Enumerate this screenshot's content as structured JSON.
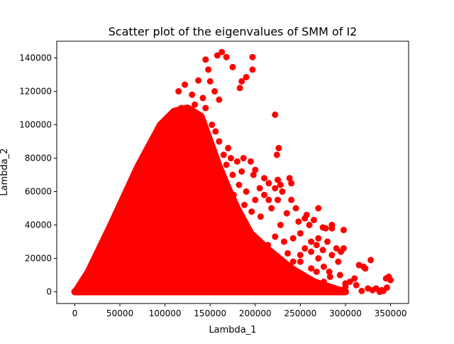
{
  "chart_data": {
    "type": "scatter",
    "title": "Scatter plot of the eigenvalues of SMM of I2",
    "xlabel": "Lambda_1",
    "ylabel": "Lambda_2",
    "xlim": [
      -20000,
      370000
    ],
    "ylim": [
      -7000,
      150000
    ],
    "x_ticks": [
      0,
      50000,
      100000,
      150000,
      200000,
      250000,
      300000,
      350000
    ],
    "x_tick_labels": [
      "0",
      "50000",
      "100000",
      "150000",
      "200000",
      "250000",
      "300000",
      "350000"
    ],
    "y_ticks": [
      0,
      20000,
      40000,
      60000,
      80000,
      100000,
      120000,
      140000
    ],
    "y_tick_labels": [
      "0",
      "20000",
      "40000",
      "60000",
      "80000",
      "100000",
      "120000",
      "140000"
    ],
    "grid": false,
    "marker_color": "#ff0000",
    "dense_region": [
      [
        0,
        0
      ],
      [
        2000,
        1000
      ],
      [
        15000,
        12000
      ],
      [
        40000,
        40000
      ],
      [
        70000,
        75000
      ],
      [
        95000,
        100000
      ],
      [
        110000,
        108000
      ],
      [
        125000,
        110000
      ],
      [
        140000,
        105000
      ],
      [
        150000,
        90000
      ],
      [
        160000,
        75000
      ],
      [
        170000,
        62000
      ],
      [
        180000,
        50000
      ],
      [
        195000,
        35000
      ],
      [
        215000,
        25000
      ],
      [
        240000,
        14000
      ],
      [
        265000,
        6000
      ],
      [
        290000,
        1500
      ],
      [
        300000,
        0
      ]
    ],
    "points": [
      [
        163000,
        143500
      ],
      [
        168000,
        140500
      ],
      [
        158000,
        141500
      ],
      [
        197000,
        140500
      ],
      [
        145000,
        139000
      ],
      [
        175000,
        134500
      ],
      [
        148000,
        133000
      ],
      [
        197000,
        133000
      ],
      [
        190000,
        128500
      ],
      [
        137000,
        126500
      ],
      [
        150000,
        126000
      ],
      [
        185000,
        126000
      ],
      [
        183000,
        122000
      ],
      [
        122000,
        124000
      ],
      [
        115000,
        120000
      ],
      [
        130000,
        118000
      ],
      [
        142000,
        116000
      ],
      [
        155000,
        120000
      ],
      [
        160000,
        115000
      ],
      [
        133000,
        112000
      ],
      [
        118000,
        110000
      ],
      [
        145000,
        110000
      ],
      [
        222000,
        106000
      ],
      [
        128000,
        106000
      ],
      [
        140000,
        104000
      ],
      [
        152000,
        100000
      ],
      [
        145000,
        95000
      ],
      [
        156000,
        96000
      ],
      [
        160000,
        90000
      ],
      [
        170000,
        86000
      ],
      [
        226000,
        86000
      ],
      [
        224000,
        82000
      ],
      [
        165000,
        82000
      ],
      [
        173000,
        80000
      ],
      [
        180000,
        78000
      ],
      [
        187000,
        80000
      ],
      [
        168000,
        76000
      ],
      [
        195000,
        78000
      ],
      [
        160000,
        70000
      ],
      [
        175000,
        70000
      ],
      [
        185000,
        72000
      ],
      [
        200000,
        73000
      ],
      [
        198000,
        70000
      ],
      [
        210000,
        68000
      ],
      [
        225000,
        67000
      ],
      [
        238000,
        68000
      ],
      [
        215000,
        65000
      ],
      [
        222000,
        62000
      ],
      [
        228000,
        64000
      ],
      [
        240000,
        65000
      ],
      [
        230000,
        60000
      ],
      [
        210000,
        58000
      ],
      [
        190000,
        60000
      ],
      [
        200000,
        55000
      ],
      [
        215000,
        55000
      ],
      [
        225000,
        55000
      ],
      [
        240000,
        55000
      ],
      [
        218000,
        50000
      ],
      [
        245000,
        50000
      ],
      [
        235000,
        47000
      ],
      [
        257000,
        46000
      ],
      [
        255000,
        44000
      ],
      [
        265000,
        43000
      ],
      [
        270000,
        50000
      ],
      [
        260000,
        40000
      ],
      [
        248000,
        42000
      ],
      [
        278000,
        38000
      ],
      [
        270000,
        32000
      ],
      [
        285000,
        40000
      ],
      [
        285000,
        38000
      ],
      [
        298000,
        37000
      ],
      [
        275000,
        38500
      ],
      [
        250000,
        35000
      ],
      [
        262000,
        30000
      ],
      [
        280000,
        30000
      ],
      [
        242000,
        32000
      ],
      [
        290000,
        26000
      ],
      [
        298000,
        26000
      ],
      [
        295000,
        24000
      ],
      [
        270000,
        20000
      ],
      [
        255000,
        26000
      ],
      [
        250000,
        18000
      ],
      [
        262000,
        14000
      ],
      [
        276000,
        15000
      ],
      [
        282000,
        12000
      ],
      [
        268000,
        12000
      ],
      [
        310000,
        8000
      ],
      [
        328000,
        19000
      ],
      [
        320000,
        15000
      ],
      [
        315000,
        16000
      ],
      [
        322000,
        14000
      ],
      [
        305000,
        6000
      ],
      [
        300000,
        5000
      ],
      [
        340000,
        1000
      ],
      [
        345000,
        8000
      ],
      [
        348000,
        9000
      ],
      [
        350000,
        7000
      ],
      [
        346000,
        2500
      ],
      [
        342000,
        500
      ],
      [
        338000,
        0
      ],
      [
        330000,
        1000
      ],
      [
        325000,
        2000
      ],
      [
        318000,
        500
      ],
      [
        290000,
        1000
      ],
      [
        280000,
        2000
      ],
      [
        270000,
        3000
      ],
      [
        262000,
        1500
      ],
      [
        255000,
        500
      ],
      [
        248000,
        2500
      ],
      [
        240000,
        4000
      ],
      [
        232000,
        2000
      ],
      [
        220000,
        5000
      ],
      [
        212000,
        2500
      ],
      [
        206000,
        7000
      ],
      [
        200000,
        3000
      ],
      [
        226000,
        10000
      ],
      [
        236000,
        8000
      ],
      [
        245000,
        12000
      ],
      [
        252000,
        8000
      ],
      [
        258000,
        5000
      ],
      [
        232000,
        14000
      ],
      [
        220000,
        16000
      ],
      [
        210000,
        14000
      ],
      [
        204000,
        20000
      ],
      [
        214000,
        28000
      ],
      [
        222000,
        33000
      ],
      [
        232000,
        30000
      ],
      [
        228000,
        40000
      ],
      [
        236000,
        23000
      ],
      [
        250000,
        22000
      ],
      [
        242000,
        18000
      ],
      [
        262000,
        24000
      ],
      [
        268000,
        28000
      ],
      [
        275000,
        25000
      ],
      [
        285000,
        22000
      ],
      [
        292000,
        18000
      ],
      [
        276000,
        6000
      ],
      [
        283000,
        9000
      ],
      [
        294000,
        10000
      ],
      [
        300000,
        3000
      ],
      [
        312000,
        4000
      ],
      [
        334000,
        2000
      ],
      [
        206000,
        45000
      ],
      [
        196000,
        48000
      ],
      [
        188000,
        52000
      ],
      [
        205000,
        62000
      ],
      [
        182000,
        64000
      ],
      [
        176000,
        58000
      ],
      [
        170000,
        54000
      ],
      [
        165000,
        60000
      ]
    ]
  }
}
